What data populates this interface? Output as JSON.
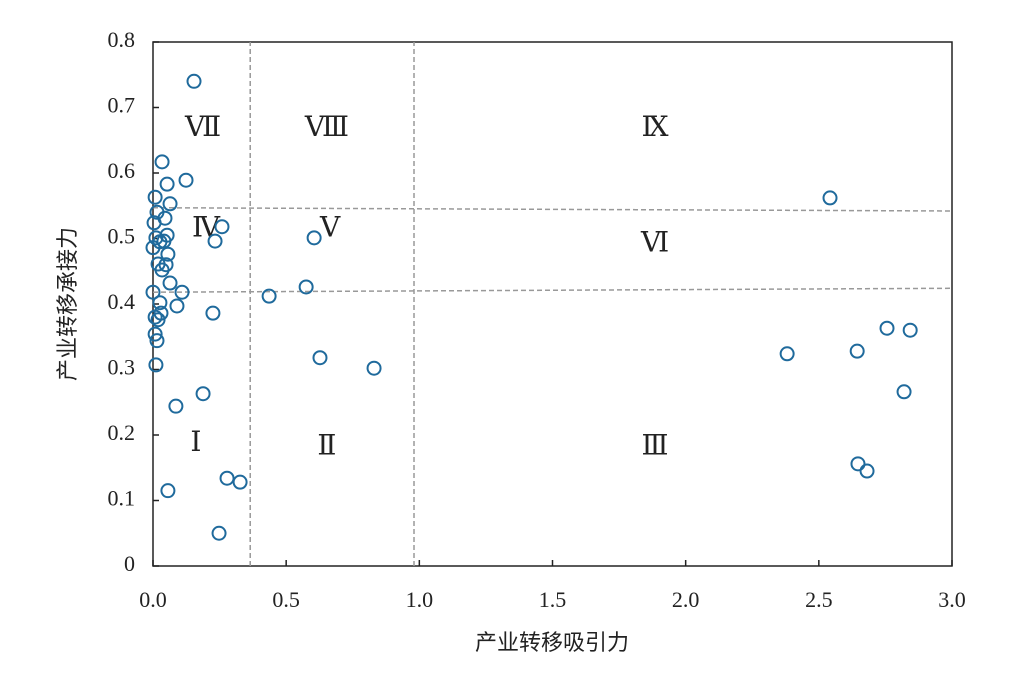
{
  "chart_data": {
    "type": "scatter",
    "x_label": "产业转移吸引力",
    "y_label": "产业转移承接力",
    "xlim": [
      0,
      3.0
    ],
    "ylim": [
      0,
      0.8
    ],
    "xticks": [
      {
        "value": 0,
        "label": "0.0"
      },
      0.5,
      {
        "value": 1,
        "label": "1.0"
      },
      1.5,
      {
        "value": 2,
        "label": "2.0"
      },
      2.5,
      {
        "value": 3,
        "label": "3.0"
      }
    ],
    "yticks": [
      0,
      0.1,
      0.2,
      0.3,
      0.4,
      0.5,
      0.6,
      0.7,
      0.8
    ],
    "color": "#1f6a9c",
    "line_color": "#999999",
    "x": [
      0.154,
      0.034,
      0.053,
      0.124,
      0.008,
      0.064,
      0.015,
      0.045,
      0.004,
      0.259,
      0.053,
      0.011,
      0.026,
      0.041,
      0.233,
      0.605,
      0.0,
      0.056,
      0.019,
      0.049,
      0.034,
      0.064,
      0.0,
      0.109,
      0.575,
      0.436,
      0.026,
      0.09,
      0.03,
      0.225,
      0.008,
      0.019,
      0.008,
      0.015,
      0.627,
      0.011,
      0.83,
      0.188,
      0.086,
      0.278,
      0.327,
      0.056,
      0.248,
      2.542,
      2.381,
      2.644,
      2.756,
      2.843,
      2.82,
      2.647,
      2.681
    ],
    "y": [
      0.74,
      0.617,
      0.583,
      0.589,
      0.563,
      0.553,
      0.54,
      0.531,
      0.524,
      0.518,
      0.505,
      0.501,
      0.495,
      0.496,
      0.496,
      0.501,
      0.486,
      0.476,
      0.461,
      0.46,
      0.452,
      0.432,
      0.418,
      0.418,
      0.426,
      0.412,
      0.402,
      0.397,
      0.386,
      0.386,
      0.38,
      0.376,
      0.354,
      0.344,
      0.318,
      0.307,
      0.302,
      0.263,
      0.244,
      0.134,
      0.128,
      0.115,
      0.05,
      0.562,
      0.324,
      0.328,
      0.363,
      0.36,
      0.266,
      0.156,
      0.145
    ],
    "reference_lines": [
      {
        "x": [
          0.365,
          0.365
        ],
        "y": [
          0,
          0.8
        ]
      },
      {
        "x": [
          0.98,
          0.98
        ],
        "y": [
          0,
          0.8
        ]
      },
      {
        "x": [
          0,
          3.0
        ],
        "y": [
          0.547,
          0.542
        ]
      },
      {
        "x": [
          0,
          3.0
        ],
        "y": [
          0.418,
          0.424
        ]
      }
    ],
    "annotations": [
      {
        "text": "Ⅶ",
        "x": 0.188,
        "y": 0.666
      },
      {
        "text": "Ⅷ",
        "x": 0.653,
        "y": 0.666
      },
      {
        "text": "Ⅸ",
        "x": 1.885,
        "y": 0.666
      },
      {
        "text": "Ⅳ",
        "x": 0.199,
        "y": 0.513
      },
      {
        "text": "Ⅴ",
        "x": 0.665,
        "y": 0.513
      },
      {
        "text": "Ⅵ",
        "x": 1.885,
        "y": 0.49
      },
      {
        "text": "Ⅰ",
        "x": 0.161,
        "y": 0.185
      },
      {
        "text": "Ⅱ",
        "x": 0.653,
        "y": 0.18
      },
      {
        "text": "Ⅲ",
        "x": 1.885,
        "y": 0.18
      }
    ]
  }
}
